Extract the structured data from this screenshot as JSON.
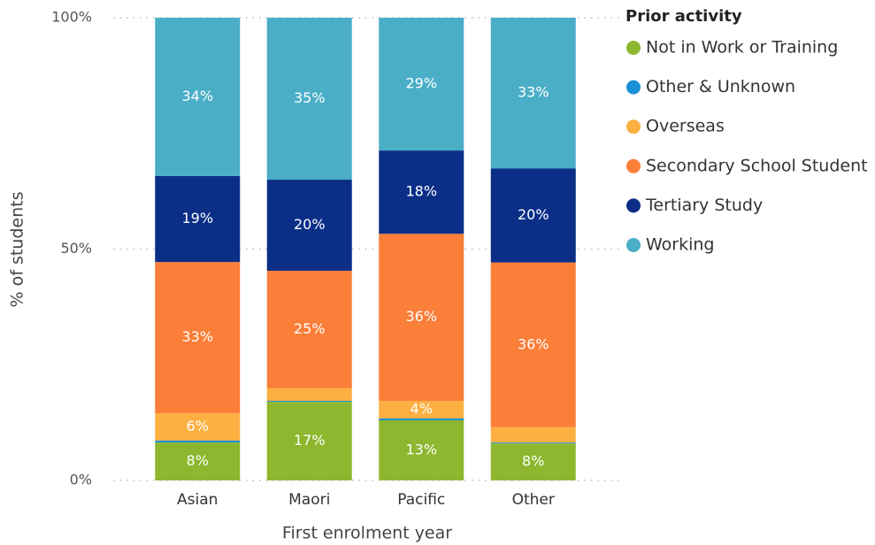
{
  "chart_data": {
    "type": "stacked_bar_100",
    "xlabel": "First enrolment year",
    "ylabel": "% of students",
    "legend_title": "Prior activity",
    "categories": [
      "Asian",
      "Maori",
      "Pacific",
      "Other"
    ],
    "ylim": [
      0,
      100
    ],
    "yticks": [
      {
        "value": 0,
        "label": "0%"
      },
      {
        "value": 50,
        "label": "50%"
      },
      {
        "value": 100,
        "label": "100%"
      }
    ],
    "grid": true,
    "series": [
      {
        "name": "Not in Work or Training",
        "color": "#8db72e",
        "values": [
          8.2,
          17.0,
          13.0,
          8.0
        ],
        "value_labels": [
          "8%",
          "17%",
          "13%",
          "8%"
        ]
      },
      {
        "name": "Other & Unknown",
        "color": "#1a8fd6",
        "values": [
          0.4,
          0.2,
          0.4,
          0.2
        ],
        "value_labels": [
          null,
          null,
          null,
          null
        ]
      },
      {
        "name": "Overseas",
        "color": "#fdb042",
        "values": [
          5.9,
          2.7,
          3.8,
          3.3
        ],
        "value_labels": [
          "6%",
          null,
          "4%",
          null
        ]
      },
      {
        "name": "Secondary School Student",
        "color": "#fb7e39",
        "values": [
          32.7,
          25.4,
          36.1,
          35.6
        ],
        "value_labels": [
          "33%",
          "25%",
          "36%",
          "36%"
        ]
      },
      {
        "name": "Tertiary Study",
        "color": "#0b2f87",
        "values": [
          18.6,
          19.7,
          18.0,
          20.3
        ],
        "value_labels": [
          "19%",
          "20%",
          "18%",
          "20%"
        ]
      },
      {
        "name": "Working",
        "color": "#4aaec7",
        "values": [
          34.2,
          35.0,
          28.7,
          32.6
        ],
        "value_labels": [
          "34%",
          "35%",
          "29%",
          "33%"
        ]
      }
    ]
  }
}
